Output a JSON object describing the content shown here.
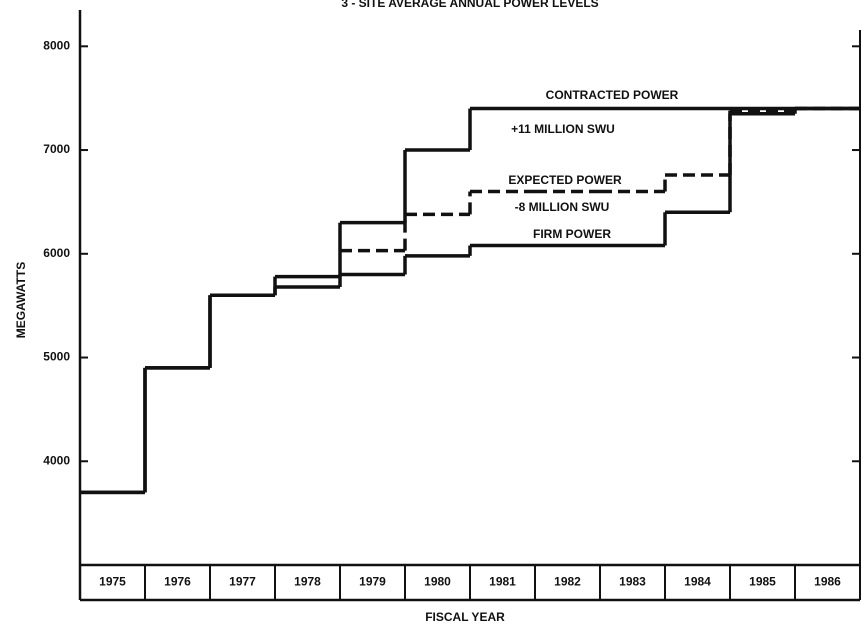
{
  "chart_data": {
    "type": "step",
    "title": "3 - SITE AVERAGE ANNUAL POWER LEVELS",
    "x_label": "FISCAL YEAR",
    "y_label": "MEGAWATTS",
    "categories": [
      "1975",
      "1976",
      "1977",
      "1978",
      "1979",
      "1980",
      "1981",
      "1982",
      "1983",
      "1984",
      "1985",
      "1986"
    ],
    "series": [
      {
        "name": "CONTRACTED POWER",
        "color": "#111111",
        "dashed": false,
        "values": [
          3700,
          4900,
          5600,
          5780,
          6300,
          7000,
          7400,
          7400,
          7400,
          7400,
          7400,
          7400
        ]
      },
      {
        "name": "FIRM POWER",
        "color": "#111111",
        "dashed": false,
        "values": [
          3700,
          4900,
          5600,
          5680,
          5800,
          5980,
          6080,
          6080,
          6080,
          6400,
          7350,
          7400
        ]
      },
      {
        "name": "EXPECTED POWER",
        "color": "#111111",
        "dashed": true,
        "values": [
          null,
          null,
          null,
          null,
          6030,
          6380,
          6600,
          6600,
          6600,
          6760,
          7380,
          7400
        ]
      }
    ],
    "annotations": [
      "+11 MILLION SWU",
      "-8 MILLION SWU"
    ],
    "ylim": [
      3000,
      8350
    ],
    "yticks": [
      4000,
      5000,
      6000,
      7000,
      8000
    ],
    "grid": false
  }
}
